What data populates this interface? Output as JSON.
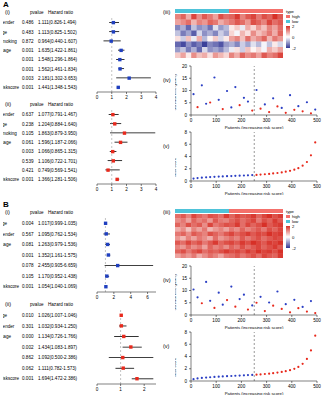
{
  "chart_data": [
    {
      "panel": "A",
      "title": "(i)",
      "type": "forest",
      "header": [
        "pvalue",
        "Hazard ratio"
      ],
      "color": "#1f3fbf",
      "ref_line": 1,
      "xlim": [
        0,
        4
      ],
      "xticks": [
        0,
        1,
        2,
        3,
        4
      ],
      "categories": [
        "Gender",
        "Age",
        "Smoking",
        "Stage",
        "T",
        "N",
        "M",
        "Riskscore"
      ],
      "pvalue": [
        "0.486",
        "0.483",
        "0.872",
        "0.001",
        "0.001",
        "0.001",
        "0.003",
        "0.001"
      ],
      "hr_labels": [
        "1.111(0.826-1.494)",
        "1.113(0.825-1.502)",
        "0.964(0.440-1.607)",
        "1.635(1.422-1.861)",
        "1.548(1.296-1.864)",
        "1.562(1.461-1.834)",
        "2.181(1.302-3.653)",
        "1.441(1.348-1.543)"
      ],
      "values": [
        1.111,
        1.113,
        0.964,
        1.635,
        1.548,
        1.562,
        2.181,
        1.441
      ],
      "low": [
        0.826,
        0.825,
        0.44,
        1.422,
        1.296,
        1.461,
        1.302,
        1.348
      ],
      "high": [
        1.494,
        1.502,
        1.607,
        1.861,
        1.864,
        1.834,
        3.653,
        1.543
      ]
    },
    {
      "panel": "A",
      "title": "(ii)",
      "type": "forest",
      "header": [
        "pvalue",
        "Hazard ratio"
      ],
      "color": "#e8291c",
      "ref_line": 1,
      "xlim": [
        0,
        4
      ],
      "xticks": [
        0,
        1,
        2,
        3,
        4
      ],
      "categories": [
        "Gender",
        "Age",
        "Smoking",
        "Stage",
        "T",
        "N",
        "M",
        "Riskscore"
      ],
      "pvalue": [
        "0.637",
        "0.238",
        "0.105",
        "0.061",
        "0.003",
        "0.539",
        "0.421",
        "0.001"
      ],
      "hr_labels": [
        "1.077(0.791-1.467)",
        "1.204(0.884-1.640)",
        "1.863(0.879-3.950)",
        "1.596(1.187-2.066)",
        "1.066(0.865-1.315)",
        "1.106(0.722-1.701)",
        "0.749(0.569-1.541)",
        "1.366(1.281-1.506)"
      ],
      "values": [
        1.077,
        1.204,
        1.863,
        1.596,
        1.066,
        1.106,
        0.749,
        1.366
      ],
      "low": [
        0.791,
        0.884,
        0.879,
        1.187,
        0.865,
        0.722,
        0.569,
        1.281
      ],
      "high": [
        1.467,
        1.64,
        3.95,
        2.066,
        1.315,
        1.701,
        1.541,
        1.506
      ]
    },
    {
      "panel": "A",
      "title": "(iii)",
      "type": "heatmap",
      "color_range": [
        -2,
        2
      ],
      "color_ticks": [
        -2,
        0,
        2
      ],
      "legend_title": "type",
      "groups": [
        {
          "name": "low",
          "color": "#4fc3d9",
          "count": 10
        },
        {
          "name": "high",
          "color": "#f4706b",
          "count": 10
        }
      ],
      "cells": [
        [
          1.2,
          1.5,
          0.8,
          1.8,
          1.1,
          1.6,
          1.3,
          0.9,
          1.7,
          1.4,
          1.5,
          1.9,
          1.2,
          1.6,
          1.8,
          1.3,
          1.7,
          1.5,
          2.0,
          1.6
        ],
        [
          0.9,
          1.1,
          1.4,
          0.7,
          1.2,
          1.0,
          1.5,
          1.3,
          0.8,
          1.1,
          1.3,
          1.6,
          1.4,
          1.0,
          1.7,
          1.5,
          1.2,
          1.8,
          1.4,
          1.6
        ],
        [
          -1.2,
          -0.8,
          -1.5,
          -0.6,
          -1.1,
          -0.9,
          -1.4,
          -0.3,
          -1.0,
          -0.7,
          0.2,
          0.5,
          -0.2,
          0.8,
          0.4,
          1.0,
          0.6,
          1.2,
          0.9,
          1.4
        ],
        [
          -0.6,
          -1.3,
          -0.9,
          -1.6,
          -0.4,
          -1.1,
          -0.8,
          -1.2,
          -0.5,
          -0.9,
          0.4,
          -0.1,
          0.7,
          0.3,
          1.1,
          0.6,
          0.9,
          1.3,
          0.8,
          1.5
        ],
        [
          0.3,
          -0.5,
          0.6,
          -0.2,
          0.8,
          -0.7,
          0.1,
          0.5,
          -0.4,
          0.2,
          0.9,
          1.2,
          0.6,
          1.4,
          0.8,
          1.1,
          1.5,
          0.7,
          1.3,
          1.0
        ],
        [
          -1.5,
          -1.8,
          -1.1,
          -1.6,
          -1.3,
          -1.9,
          -1.2,
          -1.4,
          -1.7,
          -1.0,
          -0.8,
          -1.2,
          -0.5,
          -0.9,
          -0.3,
          -0.7,
          -0.1,
          -0.6,
          0.2,
          -0.4
        ],
        [
          -1.0,
          -0.6,
          -1.3,
          -0.8,
          -1.5,
          -0.4,
          -1.1,
          -0.9,
          -1.2,
          -0.7,
          -0.2,
          0.3,
          -0.5,
          0.6,
          0.1,
          0.4,
          -0.1,
          0.8,
          0.5,
          0.9
        ],
        [
          0.5,
          0.9,
          0.2,
          1.1,
          0.6,
          0.8,
          0.3,
          1.0,
          0.7,
          0.4,
          1.2,
          0.8,
          1.5,
          1.1,
          1.3,
          0.9,
          1.6,
          1.2,
          1.4,
          1.8
        ]
      ]
    },
    {
      "panel": "A",
      "title": "(iv)",
      "type": "scatter",
      "xlabel": "Patients (increasing risk score)",
      "ylabel": "Survival time (years)",
      "xlim": [
        0,
        500
      ],
      "xticks": [
        0,
        100,
        200,
        300,
        400,
        500
      ],
      "ylim": [
        0,
        20
      ],
      "yticks": [
        0,
        5,
        10,
        15,
        20
      ],
      "cutoff": 251,
      "series": [
        {
          "color": "#e8291c",
          "x": [
            26,
            76,
            126,
            193,
            243,
            276,
            310,
            343,
            376,
            410,
            443,
            476
          ],
          "values": [
            3.2,
            5.1,
            2.4,
            4.0,
            1.8,
            2.6,
            1.2,
            3.5,
            0.9,
            2.1,
            1.5,
            0.7
          ]
        },
        {
          "color": "#2b3fc4",
          "x": [
            10,
            43,
            60,
            93,
            110,
            143,
            160,
            176,
            210,
            226,
            260,
            293,
            326,
            360,
            393,
            426,
            460,
            493
          ],
          "values": [
            8.5,
            12.1,
            4.6,
            15.3,
            6.2,
            9.8,
            3.1,
            11.4,
            7.0,
            5.5,
            10.2,
            4.3,
            6.8,
            2.9,
            8.1,
            3.6,
            5.2,
            2.2
          ]
        }
      ]
    },
    {
      "panel": "A",
      "title": "(v)",
      "type": "scatter",
      "xlabel": "Patients (increasing risk score)",
      "ylabel": "Risk score",
      "xlim": [
        0,
        500
      ],
      "xticks": [
        0,
        100,
        200,
        300,
        400,
        500
      ],
      "ylim": [
        0,
        8
      ],
      "yticks": [
        0,
        2,
        4,
        6,
        8
      ],
      "cutoff": 251,
      "series": [
        {
          "color": "#2b3fc4",
          "x": [
            10,
            26,
            43,
            60,
            76,
            93,
            110,
            126,
            143,
            160,
            176,
            193,
            210,
            226,
            243
          ],
          "values": [
            0.4,
            0.48,
            0.55,
            0.6,
            0.64,
            0.68,
            0.72,
            0.75,
            0.78,
            0.81,
            0.84,
            0.87,
            0.9,
            0.93,
            0.96
          ]
        },
        {
          "color": "#e8291c",
          "x": [
            260,
            276,
            293,
            310,
            326,
            343,
            360,
            376,
            393,
            410,
            426,
            443,
            460,
            476,
            493
          ],
          "values": [
            1.0,
            1.05,
            1.1,
            1.16,
            1.23,
            1.31,
            1.4,
            1.52,
            1.66,
            1.85,
            2.1,
            2.5,
            3.1,
            4.2,
            6.3
          ]
        }
      ]
    },
    {
      "panel": "B",
      "title": "(i)",
      "type": "forest",
      "header": [
        "pvalue",
        "Hazard ratio"
      ],
      "color": "#1f3fbf",
      "ref_line": 1,
      "xlim": [
        0,
        7
      ],
      "xticks": [
        0,
        2,
        4,
        6
      ],
      "categories": [
        "Age",
        "Gender",
        "Stage",
        "T",
        "M",
        "N",
        "Riskscore"
      ],
      "pvalue": [
        "0.004",
        "0.567",
        "0.081",
        "0.001",
        "0.078",
        "0.105",
        "0.001"
      ],
      "hr_labels": [
        "1.017(0.999-1.035)",
        "1.095(0.762-1.534)",
        "1.263(0.979-1.536)",
        "1.352(1.161-1.575)",
        "2.455(0.905-6.659)",
        "1.170(0.952-1.438)",
        "1.054(1.040-1.069)"
      ],
      "values": [
        1.017,
        1.095,
        1.263,
        1.352,
        2.455,
        1.17,
        1.054
      ],
      "low": [
        0.999,
        0.762,
        0.979,
        1.161,
        0.905,
        0.952,
        1.04
      ],
      "high": [
        1.035,
        1.534,
        1.536,
        1.575,
        6.659,
        1.438,
        1.069
      ]
    },
    {
      "panel": "B",
      "title": "(ii)",
      "type": "forest",
      "header": [
        "pvalue",
        "Hazard ratio"
      ],
      "color": "#e8291c",
      "ref_line": 1,
      "xlim": [
        0,
        2.5
      ],
      "xticks": [
        0,
        1,
        2
      ],
      "categories": [
        "Age",
        "Gender",
        "Stage",
        "T",
        "M",
        "N",
        "Riskscore"
      ],
      "pvalue": [
        "0.010",
        "0.301",
        "0.000",
        "0.002",
        "0.862",
        "0.062",
        "0.001"
      ],
      "hr_labels": [
        "1.026(1.007-1.046)",
        "1.032(0.934-1.250)",
        "1.134(0.726-1.766)",
        "1.434(1.083-1.897)",
        "1.092(0.500-2.386)",
        "1.111(0.782-1.573)",
        "1.694(1.472-2.386)"
      ],
      "values": [
        1.026,
        1.032,
        1.134,
        1.434,
        1.092,
        1.111,
        1.694
      ],
      "low": [
        1.007,
        0.934,
        0.726,
        1.083,
        0.5,
        0.782,
        1.472
      ],
      "high": [
        1.046,
        1.25,
        1.766,
        1.897,
        2.386,
        1.573,
        2.386
      ]
    },
    {
      "panel": "B",
      "title": "(iii)",
      "type": "heatmap",
      "color_range": [
        -2,
        2
      ],
      "color_ticks": [
        -2,
        0,
        2
      ],
      "legend_title": "type",
      "groups": [
        {
          "name": "low",
          "color": "#4fc3d9",
          "count": 10
        },
        {
          "name": "high",
          "color": "#f4706b",
          "count": 10
        }
      ],
      "cells": [
        [
          1.4,
          1.6,
          1.2,
          1.8,
          1.5,
          1.3,
          1.7,
          1.6,
          1.4,
          1.9,
          1.5,
          1.8,
          1.6,
          1.7,
          1.9,
          1.5,
          1.8,
          2.0,
          1.7,
          1.9
        ],
        [
          1.1,
          1.3,
          0.9,
          1.5,
          1.2,
          1.4,
          1.0,
          1.6,
          1.3,
          1.2,
          1.5,
          1.7,
          1.4,
          1.6,
          1.8,
          1.3,
          1.7,
          1.5,
          1.9,
          1.6
        ],
        [
          1.5,
          1.2,
          1.7,
          1.4,
          1.6,
          1.1,
          1.8,
          1.3,
          1.5,
          1.7,
          1.6,
          1.9,
          1.4,
          1.8,
          1.5,
          1.7,
          2.0,
          1.6,
          1.8,
          1.9
        ],
        [
          0.8,
          1.1,
          0.6,
          1.2,
          0.9,
          1.3,
          0.7,
          1.0,
          1.2,
          0.9,
          1.3,
          1.1,
          1.5,
          1.2,
          1.4,
          1.6,
          1.3,
          1.7,
          1.5,
          1.8
        ],
        [
          1.3,
          1.5,
          1.1,
          1.6,
          1.4,
          1.2,
          1.7,
          1.5,
          1.3,
          1.6,
          1.8,
          1.5,
          1.7,
          1.9,
          1.6,
          1.8,
          1.7,
          2.0,
          1.8,
          1.9
        ],
        [
          1.0,
          0.7,
          1.2,
          0.9,
          1.3,
          1.1,
          0.8,
          1.4,
          1.0,
          1.2,
          1.4,
          1.2,
          1.6,
          1.3,
          1.5,
          1.7,
          1.4,
          1.6,
          1.8,
          1.7
        ],
        [
          1.6,
          1.4,
          1.8,
          1.5,
          1.7,
          1.3,
          1.6,
          1.9,
          1.5,
          1.7,
          1.8,
          1.6,
          1.9,
          1.7,
          2.0,
          1.8,
          1.6,
          1.9,
          1.8,
          2.0
        ],
        [
          1.2,
          1.0,
          1.4,
          1.1,
          1.3,
          0.9,
          1.5,
          1.2,
          1.4,
          1.1,
          1.5,
          1.3,
          1.7,
          1.4,
          1.6,
          1.8,
          1.5,
          1.7,
          1.9,
          1.6
        ],
        [
          1.5,
          1.7,
          1.3,
          1.6,
          1.8,
          1.4,
          1.6,
          1.5,
          1.7,
          1.9,
          1.7,
          1.8,
          1.6,
          1.9,
          1.7,
          2.0,
          1.8,
          1.9,
          1.7,
          2.0
        ],
        [
          0.9,
          1.2,
          1.0,
          1.3,
          0.8,
          1.1,
          1.4,
          1.2,
          0.9,
          1.3,
          1.4,
          1.6,
          1.3,
          1.5,
          1.7,
          1.4,
          1.8,
          1.6,
          1.5,
          1.9
        ]
      ]
    },
    {
      "panel": "B",
      "title": "(iv)",
      "type": "scatter",
      "xlabel": "Patients (increasing risk score)",
      "ylabel": "Survival time (years)",
      "xlim": [
        0,
        500
      ],
      "xticks": [
        0,
        100,
        200,
        300,
        400,
        500
      ],
      "ylim": [
        0,
        20
      ],
      "yticks": [
        0,
        5,
        10,
        15,
        20
      ],
      "cutoff": 251,
      "series": [
        {
          "color": "#e8291c",
          "x": [
            43,
            93,
            143,
            176,
            226,
            260,
            293,
            326,
            360,
            393,
            426,
            460,
            493
          ],
          "values": [
            4.8,
            2.9,
            6.1,
            3.4,
            2.2,
            5.0,
            1.6,
            3.8,
            2.5,
            1.1,
            2.8,
            1.4,
            0.8
          ]
        },
        {
          "color": "#2b3fc4",
          "x": [
            10,
            26,
            60,
            76,
            110,
            126,
            160,
            193,
            210,
            243,
            276,
            310,
            343,
            376,
            410,
            443,
            476
          ],
          "values": [
            10.4,
            7.2,
            13.5,
            5.8,
            9.1,
            4.2,
            11.6,
            6.5,
            8.3,
            3.9,
            7.4,
            5.1,
            9.6,
            4.4,
            6.2,
            3.3,
            5.7
          ]
        }
      ]
    },
    {
      "panel": "B",
      "title": "(v)",
      "type": "scatter",
      "xlabel": "Patients (increasing risk score)",
      "ylabel": "Risk score",
      "xlim": [
        0,
        500
      ],
      "xticks": [
        0,
        100,
        200,
        300,
        400,
        500
      ],
      "ylim": [
        0,
        8
      ],
      "yticks": [
        0,
        2,
        4,
        6,
        8
      ],
      "cutoff": 251,
      "series": [
        {
          "color": "#2b3fc4",
          "x": [
            10,
            26,
            43,
            60,
            76,
            93,
            110,
            126,
            143,
            160,
            176,
            193,
            210,
            226,
            243
          ],
          "values": [
            0.3,
            0.42,
            0.5,
            0.56,
            0.61,
            0.66,
            0.7,
            0.74,
            0.78,
            0.82,
            0.86,
            0.89,
            0.93,
            0.96,
            0.99
          ]
        },
        {
          "color": "#e8291c",
          "x": [
            260,
            276,
            293,
            310,
            326,
            343,
            360,
            376,
            393,
            410,
            426,
            443,
            460,
            476,
            493
          ],
          "values": [
            1.03,
            1.08,
            1.14,
            1.2,
            1.28,
            1.37,
            1.48,
            1.6,
            1.76,
            1.98,
            2.3,
            2.8,
            3.6,
            5.0,
            7.4
          ]
        }
      ]
    }
  ]
}
